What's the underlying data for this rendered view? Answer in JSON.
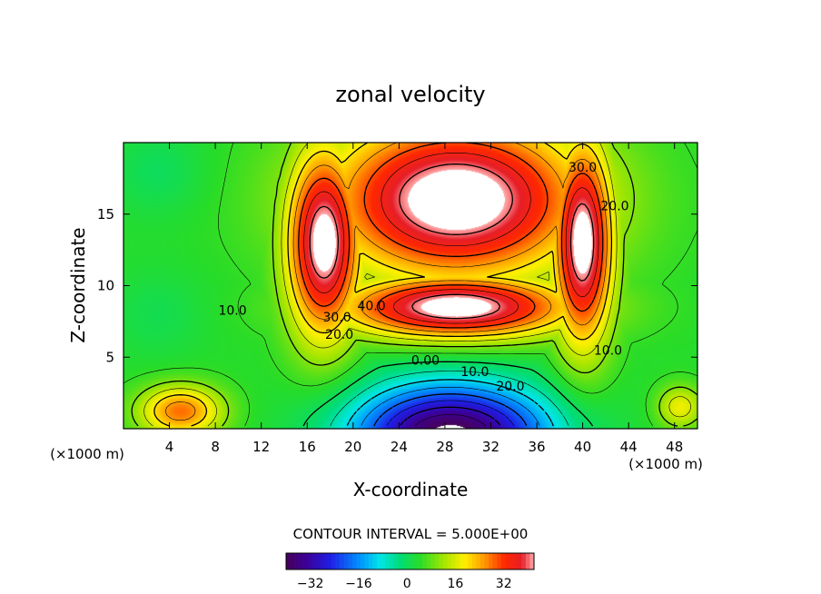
{
  "chart_data": {
    "type": "heatmap",
    "title": "zonal velocity",
    "xlabel": "X-coordinate",
    "ylabel": "Z-coordinate",
    "x_unit_left": "(×1000 m)",
    "x_unit_right": "(×1000 m)",
    "xlim": [
      0,
      50
    ],
    "ylim": [
      0,
      20
    ],
    "x_ticks": [
      4,
      8,
      12,
      16,
      20,
      24,
      28,
      32,
      36,
      40,
      44,
      48
    ],
    "x_tick_labels": [
      "4",
      "8",
      "12",
      "16",
      "20",
      "24",
      "28",
      "32",
      "36",
      "40",
      "44",
      "48"
    ],
    "y_ticks": [
      5,
      10,
      15
    ],
    "y_tick_labels": [
      "5",
      "10",
      "15"
    ],
    "contour_interval_text": "CONTOUR INTERVAL = 5.000E+00",
    "colorbar": {
      "min": -40,
      "max": 42,
      "ticks": [
        -32,
        -16,
        0,
        16,
        32
      ],
      "tick_labels": [
        "−32",
        "−16",
        "0",
        "16",
        "32"
      ]
    },
    "contour_labels": [
      {
        "text": "40.0",
        "x": 21.6,
        "y": 8.6
      },
      {
        "text": "30.0",
        "x": 18.6,
        "y": 7.8
      },
      {
        "text": "20.0",
        "x": 18.8,
        "y": 6.6
      },
      {
        "text": "10.0",
        "x": 9.5,
        "y": 8.3
      },
      {
        "text": "10.0",
        "x": 42.2,
        "y": 5.5
      },
      {
        "text": "0.00",
        "x": 26.3,
        "y": 4.8
      },
      {
        "text": "10.0",
        "x": 30.6,
        "y": 4.0
      },
      {
        "text": "20.0",
        "x": 33.7,
        "y": 3.0
      },
      {
        "text": "30.0",
        "x": 40.0,
        "y": 18.3
      },
      {
        "text": "20.0",
        "x": 42.8,
        "y": 15.6
      }
    ],
    "field_features": [
      {
        "kind": "jet",
        "x_center": 29,
        "z_center": 15,
        "peak": 42,
        "note": "values above color range drawn white"
      },
      {
        "kind": "return_flow",
        "x_center": 28.5,
        "z_center": 0,
        "min": -40
      },
      {
        "kind": "near_surface_max",
        "x_center": 5,
        "z_center": 1.5,
        "peak": 28
      }
    ]
  }
}
